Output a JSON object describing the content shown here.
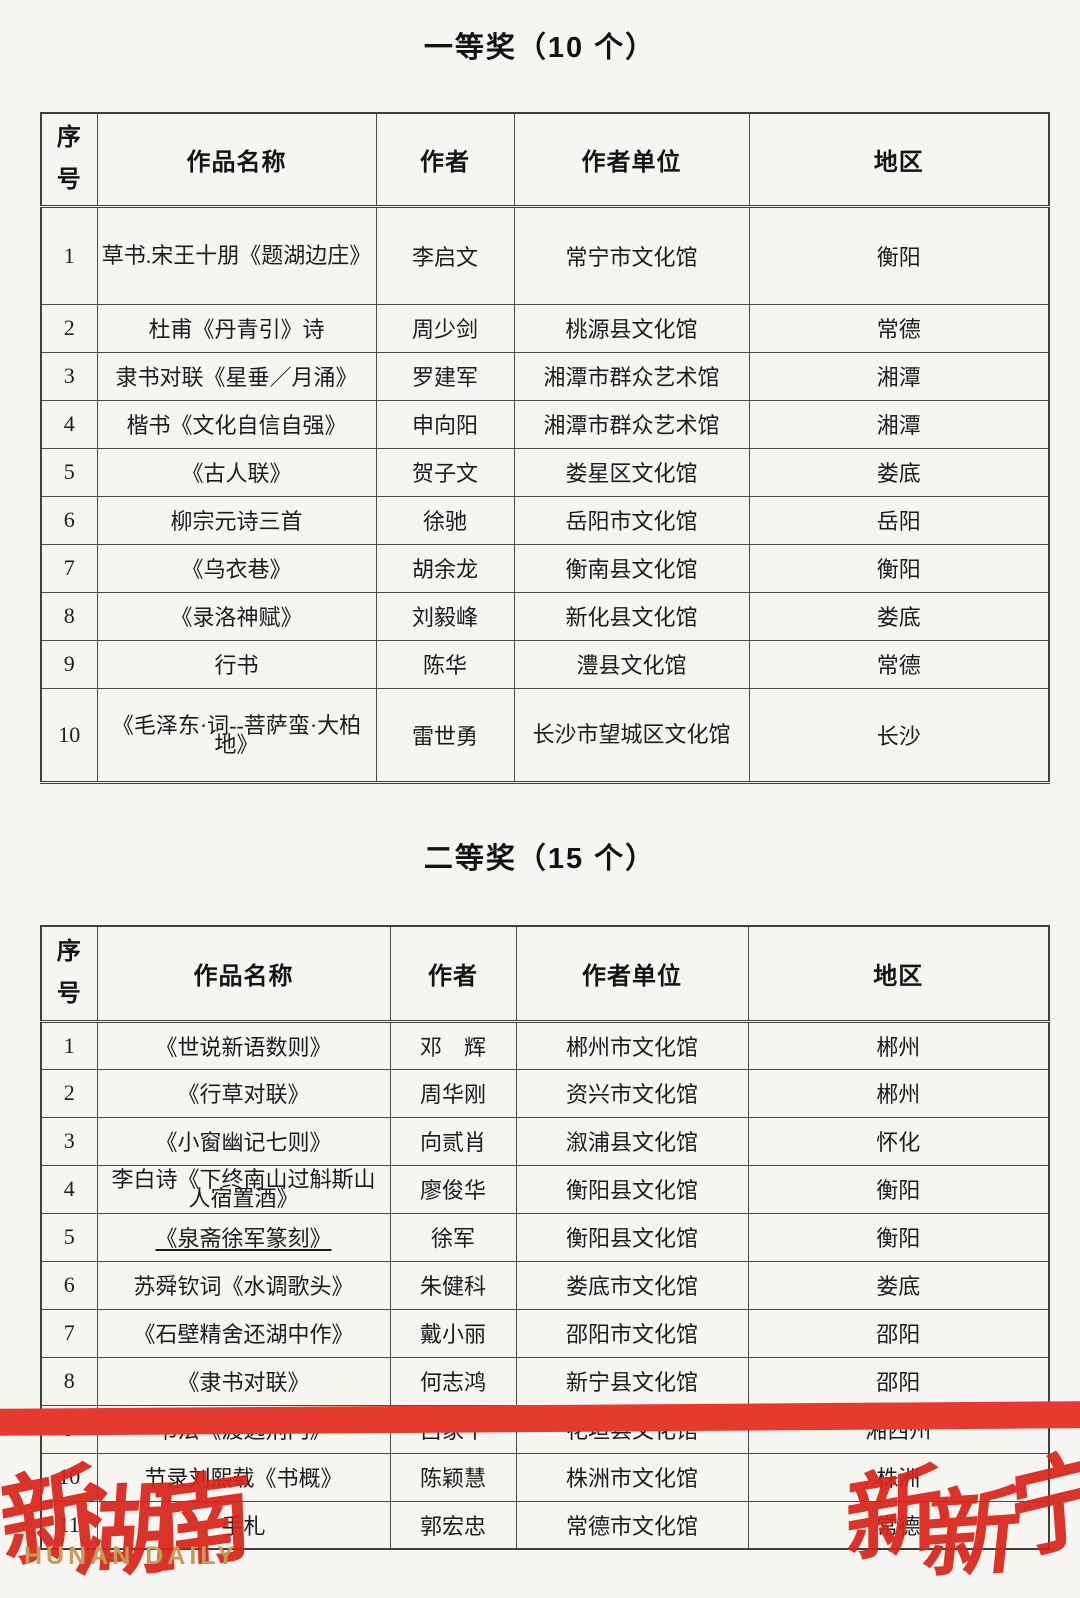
{
  "sections": [
    {
      "title": "一等奖（10 个）",
      "columns": [
        "序\n号",
        "作品名称",
        "作者",
        "作者单位",
        "地区"
      ],
      "rows": [
        {
          "no": "1",
          "work": "草书.宋王十朋《题湖边庄》",
          "author": "李启文",
          "unit": "常宁市文化馆",
          "region": "衡阳"
        },
        {
          "no": "2",
          "work": "杜甫《丹青引》诗",
          "author": "周少剑",
          "unit": "桃源县文化馆",
          "region": "常德"
        },
        {
          "no": "3",
          "work": "隶书对联《星垂／月涌》",
          "author": "罗建军",
          "unit": "湘潭市群众艺术馆",
          "region": "湘潭"
        },
        {
          "no": "4",
          "work": "楷书《文化自信自强》",
          "author": "申向阳",
          "unit": "湘潭市群众艺术馆",
          "region": "湘潭"
        },
        {
          "no": "5",
          "work": "《古人联》",
          "author": "贺子文",
          "unit": "娄星区文化馆",
          "region": "娄底"
        },
        {
          "no": "6",
          "work": "柳宗元诗三首",
          "author": "徐驰",
          "unit": "岳阳市文化馆",
          "region": "岳阳"
        },
        {
          "no": "7",
          "work": "《乌衣巷》",
          "author": "胡余龙",
          "unit": "衡南县文化馆",
          "region": "衡阳"
        },
        {
          "no": "8",
          "work": "《录洛神赋》",
          "author": "刘毅峰",
          "unit": "新化县文化馆",
          "region": "娄底"
        },
        {
          "no": "9",
          "work": "行书",
          "author": "陈华",
          "unit": "澧县文化馆",
          "region": "常德"
        },
        {
          "no": "10",
          "work": "《毛泽东·词--菩萨蛮·大柏地》",
          "author": "雷世勇",
          "unit": "长沙市望城区文化馆",
          "region": "长沙"
        }
      ]
    },
    {
      "title": "二等奖（15 个）",
      "columns": [
        "序\n号",
        "作品名称",
        "作者",
        "作者单位",
        "地区"
      ],
      "rows": [
        {
          "no": "1",
          "work": "《世说新语数则》",
          "author": "邓　辉",
          "unit": "郴州市文化馆",
          "region": "郴州"
        },
        {
          "no": "2",
          "work": "《行草对联》",
          "author": "周华刚",
          "unit": "资兴市文化馆",
          "region": "郴州"
        },
        {
          "no": "3",
          "work": "《小窗幽记七则》",
          "author": "向贰肖",
          "unit": "溆浦县文化馆",
          "region": "怀化"
        },
        {
          "no": "4",
          "work": "李白诗《下终南山过斛斯山人宿置酒》",
          "author": "廖俊华",
          "unit": "衡阳县文化馆",
          "region": "衡阳"
        },
        {
          "no": "5",
          "work": "《泉斋徐军篆刻》",
          "author": "徐军",
          "unit": "衡阳县文化馆",
          "region": "衡阳",
          "underline": true
        },
        {
          "no": "6",
          "work": "苏舜钦词《水调歌头》",
          "author": "朱健科",
          "unit": "娄底市文化馆",
          "region": "娄底"
        },
        {
          "no": "7",
          "work": "《石壁精舍还湖中作》",
          "author": "戴小丽",
          "unit": "邵阳市文化馆",
          "region": "邵阳"
        },
        {
          "no": "8",
          "work": "《隶书对联》",
          "author": "何志鸿",
          "unit": "新宁县文化馆",
          "region": "邵阳"
        },
        {
          "no": "9",
          "work": "书法《渡远荆门》",
          "author": "吕家平",
          "unit": "花垣县文化馆",
          "region": "湘西州"
        },
        {
          "no": "10",
          "work": "节录刘熙载《书概》",
          "author": "陈颖慧",
          "unit": "株洲市文化馆",
          "region": "株洲"
        },
        {
          "no": "11",
          "work": "手札",
          "author": "郭宏忠",
          "unit": "常德市文化馆",
          "region": "常德"
        }
      ]
    }
  ],
  "overlays": {
    "stripe_color": "#e53a2e",
    "watermark_left": "新湖南",
    "watermark_left_sub": "HUNAN DAILY",
    "watermark_right": "新新宁",
    "watermark_color": "#d8251a",
    "daily_color": "#c59b57"
  }
}
